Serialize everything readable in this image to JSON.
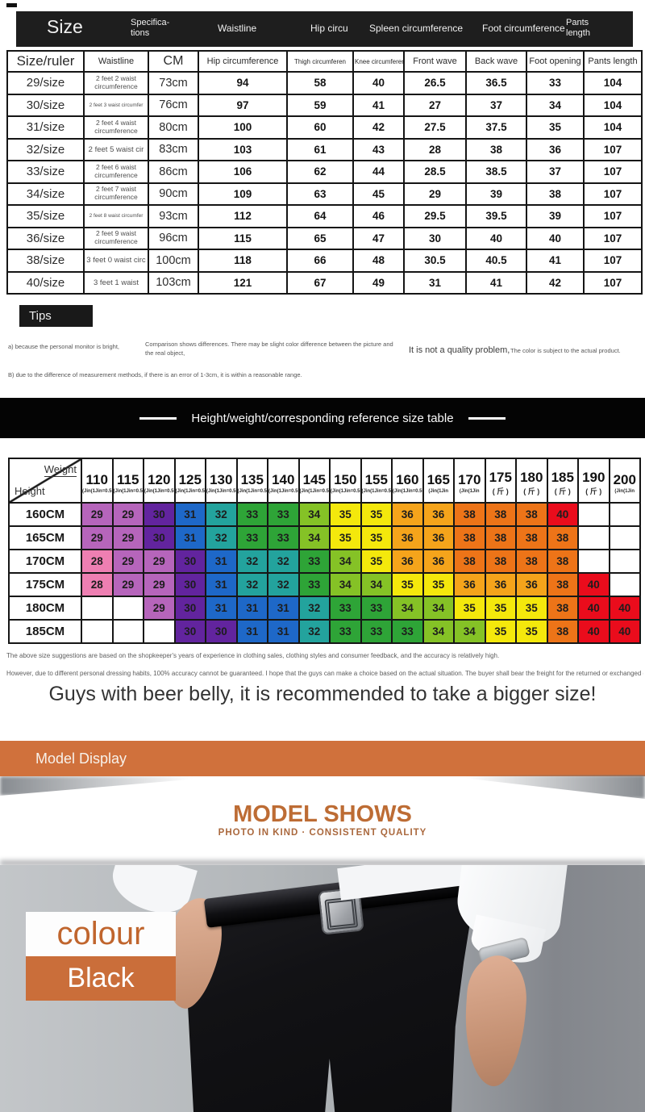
{
  "header_bar": {
    "title": "Size",
    "specifications": "Specifica-\ntions",
    "waistline": "Waistline",
    "hip": "Hip circu",
    "spleen": "Spleen circumference",
    "foot": "Foot circumference",
    "pants": "Pants\nlength"
  },
  "size_table": {
    "headers": [
      "Size/ruler",
      "Waistline",
      "CM",
      "Hip circumference",
      "Thigh circumferen",
      "Knee circumferenc",
      "Front wave",
      "Back wave",
      "Foot opening",
      "Pants length"
    ],
    "rows": [
      {
        "size": "29/size",
        "waist": "2 feet 2 waist circumference",
        "cm": "73cm",
        "hip": "94",
        "thigh": "58",
        "knee": "40",
        "front": "26.5",
        "back": "36.5",
        "foot": "33",
        "length": "104"
      },
      {
        "size": "30/size",
        "waist": "2 feet 3 waist circumfer",
        "cm": "76cm",
        "hip": "97",
        "thigh": "59",
        "knee": "41",
        "front": "27",
        "back": "37",
        "foot": "34",
        "length": "104"
      },
      {
        "size": "31/size",
        "waist": "2 feet 4 waist circumference",
        "cm": "80cm",
        "hip": "100",
        "thigh": "60",
        "knee": "42",
        "front": "27.5",
        "back": "37.5",
        "foot": "35",
        "length": "104"
      },
      {
        "size": "32/size",
        "waist": "2 feet 5 waist cir",
        "cm": "83cm",
        "hip": "103",
        "thigh": "61",
        "knee": "43",
        "front": "28",
        "back": "38",
        "foot": "36",
        "length": "107"
      },
      {
        "size": "33/size",
        "waist": "2 feet 6 waist circumference",
        "cm": "86cm",
        "hip": "106",
        "thigh": "62",
        "knee": "44",
        "front": "28.5",
        "back": "38.5",
        "foot": "37",
        "length": "107"
      },
      {
        "size": "34/size",
        "waist": "2 feet 7 waist circumference",
        "cm": "90cm",
        "hip": "109",
        "thigh": "63",
        "knee": "45",
        "front": "29",
        "back": "39",
        "foot": "38",
        "length": "107"
      },
      {
        "size": "35/size",
        "waist": "2 feet 8 waist circumfer",
        "cm": "93cm",
        "hip": "112",
        "thigh": "64",
        "knee": "46",
        "front": "29.5",
        "back": "39.5",
        "foot": "39",
        "length": "107"
      },
      {
        "size": "36/size",
        "waist": "2 feet 9 waist circumference",
        "cm": "96cm",
        "hip": "115",
        "thigh": "65",
        "knee": "47",
        "front": "30",
        "back": "40",
        "foot": "40",
        "length": "107"
      },
      {
        "size": "38/size",
        "waist": "3 feet 0 waist circ",
        "cm": "100cm",
        "hip": "118",
        "thigh": "66",
        "knee": "48",
        "front": "30.5",
        "back": "40.5",
        "foot": "41",
        "length": "107"
      },
      {
        "size": "40/size",
        "waist": "3 feet 1 waist",
        "cm": "103cm",
        "hip": "121",
        "thigh": "67",
        "knee": "49",
        "front": "31",
        "back": "41",
        "foot": "42",
        "length": "107"
      }
    ]
  },
  "tips": {
    "label": "Tips",
    "a": "a) because the personal monitor is bright,",
    "b": "Comparison shows differences. There may be slight color difference between the picture and the real object,",
    "c": "It is not a quality problem,",
    "d": "The color is subject to the actual product.",
    "e": "B) due to the difference of measurement methods, if there is an error of 1-3cm, it is within a reasonable range."
  },
  "ref_banner": {
    "title": "Height/weight/corresponding reference size table"
  },
  "weight_table": {
    "corner_top": "Weight",
    "corner_bottom": "Height",
    "weights": [
      "110",
      "115",
      "120",
      "125",
      "130",
      "135",
      "140",
      "145",
      "150",
      "155",
      "160",
      "165",
      "170",
      "175",
      "180",
      "185",
      "190",
      "200"
    ],
    "weight_subs": [
      "(Jin(1Jin=0.5kg))",
      "(Jin(1Jin=0.5kg))",
      "(Jin(1Jin=0.5kg))",
      "(Jin(1Jin=0.5kg))",
      "(Jin(1Jin=0.5kg))",
      "(Jin(1Jin=0.5kg))",
      "(Jin(1Jin=0.5kg))",
      "(Jin(1Jin=0.5kg))",
      "(Jin(1Jin=0.5kg))",
      "(Jin(1Jin=0.5kg))",
      "(Jin(1Jin=0.5kg))",
      "(Jin(1Jin",
      "(Jin(1Jin",
      "( 斤 )",
      "( 斤 )",
      "( 斤 )",
      "( 斤 )",
      "(Jin(1Jin"
    ],
    "rows": [
      {
        "height": "160CM",
        "values": [
          "29",
          "29",
          "30",
          "31",
          "32",
          "33",
          "33",
          "34",
          "35",
          "35",
          "36",
          "36",
          "38",
          "38",
          "38",
          "40",
          "",
          ""
        ]
      },
      {
        "height": "165CM",
        "values": [
          "29",
          "29",
          "30",
          "31",
          "32",
          "33",
          "33",
          "34",
          "35",
          "35",
          "36",
          "36",
          "38",
          "38",
          "38",
          "38",
          "",
          ""
        ]
      },
      {
        "height": "170CM",
        "values": [
          "28",
          "29",
          "29",
          "30",
          "31",
          "32",
          "32",
          "33",
          "34",
          "35",
          "36",
          "36",
          "38",
          "38",
          "38",
          "38",
          "",
          ""
        ]
      },
      {
        "height": "175CM",
        "values": [
          "28",
          "29",
          "29",
          "30",
          "31",
          "32",
          "32",
          "33",
          "34",
          "34",
          "35",
          "35",
          "36",
          "36",
          "36",
          "38",
          "40",
          ""
        ]
      },
      {
        "height": "180CM",
        "values": [
          "",
          "",
          "29",
          "30",
          "31",
          "31",
          "31",
          "32",
          "33",
          "33",
          "34",
          "34",
          "35",
          "35",
          "35",
          "38",
          "40",
          "40"
        ]
      },
      {
        "height": "185CM",
        "values": [
          "",
          "",
          "",
          "30",
          "30",
          "31",
          "31",
          "32",
          "33",
          "33",
          "33",
          "34",
          "34",
          "35",
          "35",
          "38",
          "40",
          "40"
        ]
      }
    ],
    "value_colors": {
      "28": "#ee7fb2",
      "29": "#b665bb",
      "30": "#62249e",
      "31": "#1e68c8",
      "32": "#23a39d",
      "33": "#2ea437",
      "34": "#85c226",
      "35": "#f4e80c",
      "36": "#f5a41b",
      "38": "#ed7418",
      "40": "#ea0c1c"
    }
  },
  "notes": {
    "line1": "The above size suggestions are based on the shopkeeper's years of experience in clothing sales, clothing styles and consumer feedback, and the accuracy is relatively high.",
    "line2": "However, due to different personal dressing habits, 100% accuracy cannot be guaranteed. I hope that the guys can make a choice based on the actual situation. The buyer shall bear the freight for the returned or exchanged goods due to s",
    "big": "Guys with beer belly, it is recommended to take a bigger size!"
  },
  "model": {
    "banner": "Model Display",
    "title": "MODEL SHOWS",
    "subtitle": "PHOTO IN KIND · CONSISTENT QUALITY"
  },
  "photo": {
    "color_label": "colour",
    "color_value": "Black",
    "accent_color": "#ca6e3a"
  }
}
